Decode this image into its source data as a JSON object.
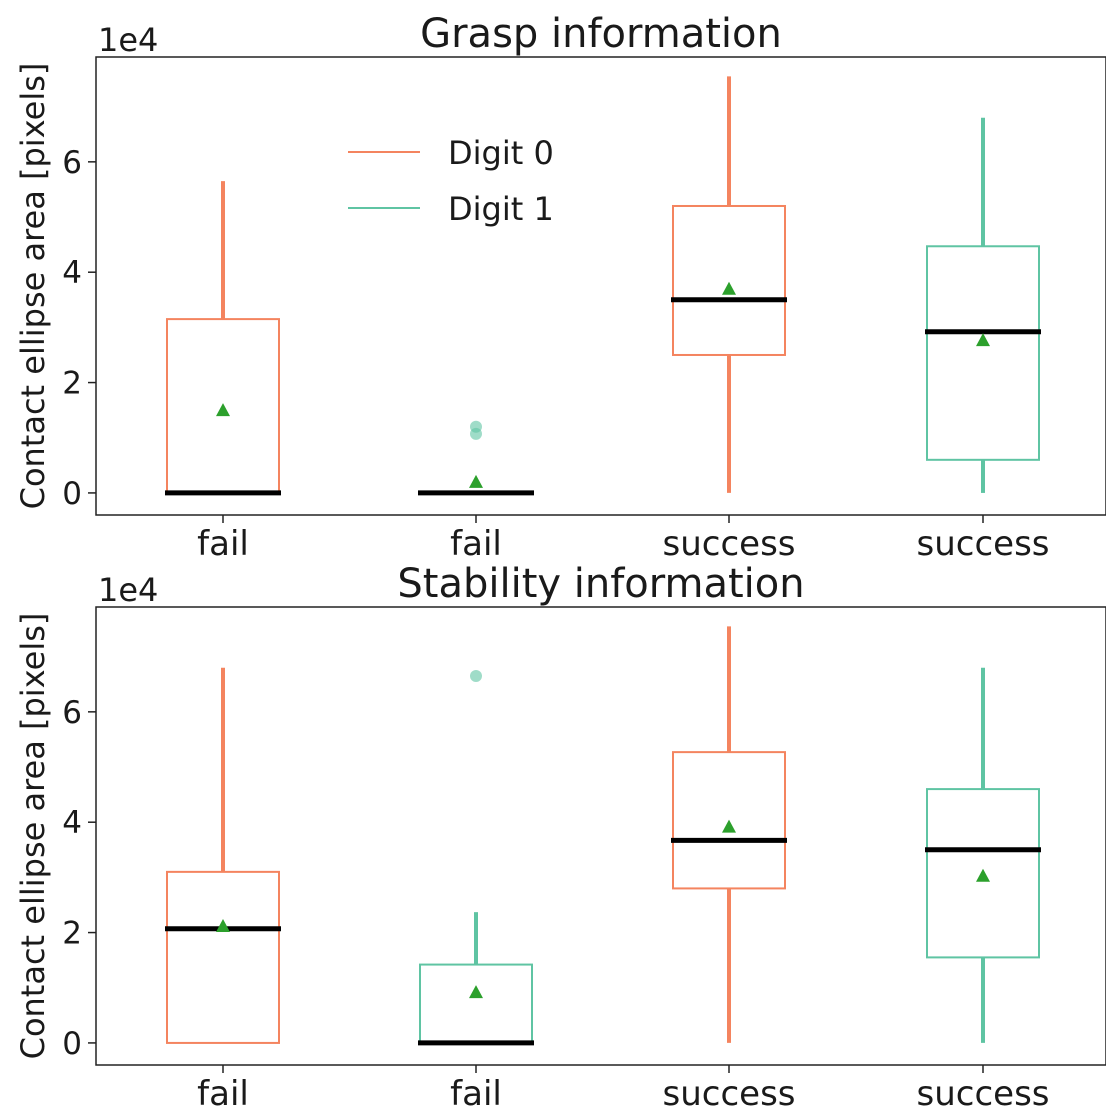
{
  "chart_data": [
    {
      "type": "box",
      "title": "Grasp information",
      "ylabel": "Contact ellipse area [pixels]",
      "y_exponent_label": "1e4",
      "ylim": [
        -0.4,
        7.9
      ],
      "yticks": [
        0,
        2,
        4,
        6
      ],
      "categories": [
        "fail",
        "fail",
        "success",
        "success"
      ],
      "legend": {
        "placement": "upper-left-center",
        "entries": [
          {
            "name": "Digit 0",
            "color": "#f4845f"
          },
          {
            "name": "Digit 1",
            "color": "#5fc4a3"
          }
        ]
      },
      "boxes": [
        {
          "category": "fail",
          "series": "Digit 0",
          "whisker_low": 0,
          "q1": 0,
          "median": 0,
          "q3": 3.15,
          "whisker_high": 5.65,
          "mean": 1.5,
          "outliers": []
        },
        {
          "category": "fail",
          "series": "Digit 1",
          "whisker_low": 0,
          "q1": 0,
          "median": 0,
          "q3": 0,
          "whisker_high": 0,
          "mean": 0.2,
          "outliers": [
            1.2,
            1.07
          ]
        },
        {
          "category": "success",
          "series": "Digit 0",
          "whisker_low": 0,
          "q1": 2.5,
          "median": 3.5,
          "q3": 5.2,
          "whisker_high": 7.55,
          "mean": 3.7,
          "outliers": []
        },
        {
          "category": "success",
          "series": "Digit 1",
          "whisker_low": 0,
          "q1": 0.6,
          "median": 2.92,
          "q3": 4.47,
          "whisker_high": 6.8,
          "mean": 2.77,
          "outliers": []
        }
      ]
    },
    {
      "type": "box",
      "title": "Stability information",
      "ylabel": "Contact ellipse area [pixels]",
      "y_exponent_label": "1e4",
      "ylim": [
        -0.4,
        7.9
      ],
      "yticks": [
        0,
        2,
        4,
        6
      ],
      "categories": [
        "fail",
        "fail",
        "success",
        "success"
      ],
      "boxes": [
        {
          "category": "fail",
          "series": "Digit 0",
          "whisker_low": 0,
          "q1": 0,
          "median": 2.07,
          "q3": 3.1,
          "whisker_high": 6.8,
          "mean": 2.12,
          "outliers": []
        },
        {
          "category": "fail",
          "series": "Digit 1",
          "whisker_low": 0,
          "q1": 0,
          "median": 0,
          "q3": 1.42,
          "whisker_high": 2.37,
          "mean": 0.92,
          "outliers": [
            6.65
          ]
        },
        {
          "category": "success",
          "series": "Digit 0",
          "whisker_low": 0,
          "q1": 2.8,
          "median": 3.67,
          "q3": 5.27,
          "whisker_high": 7.55,
          "mean": 3.92,
          "outliers": []
        },
        {
          "category": "success",
          "series": "Digit 1",
          "whisker_low": 0,
          "q1": 1.55,
          "median": 3.5,
          "q3": 4.6,
          "whisker_high": 6.8,
          "mean": 3.03,
          "outliers": []
        }
      ]
    }
  ]
}
